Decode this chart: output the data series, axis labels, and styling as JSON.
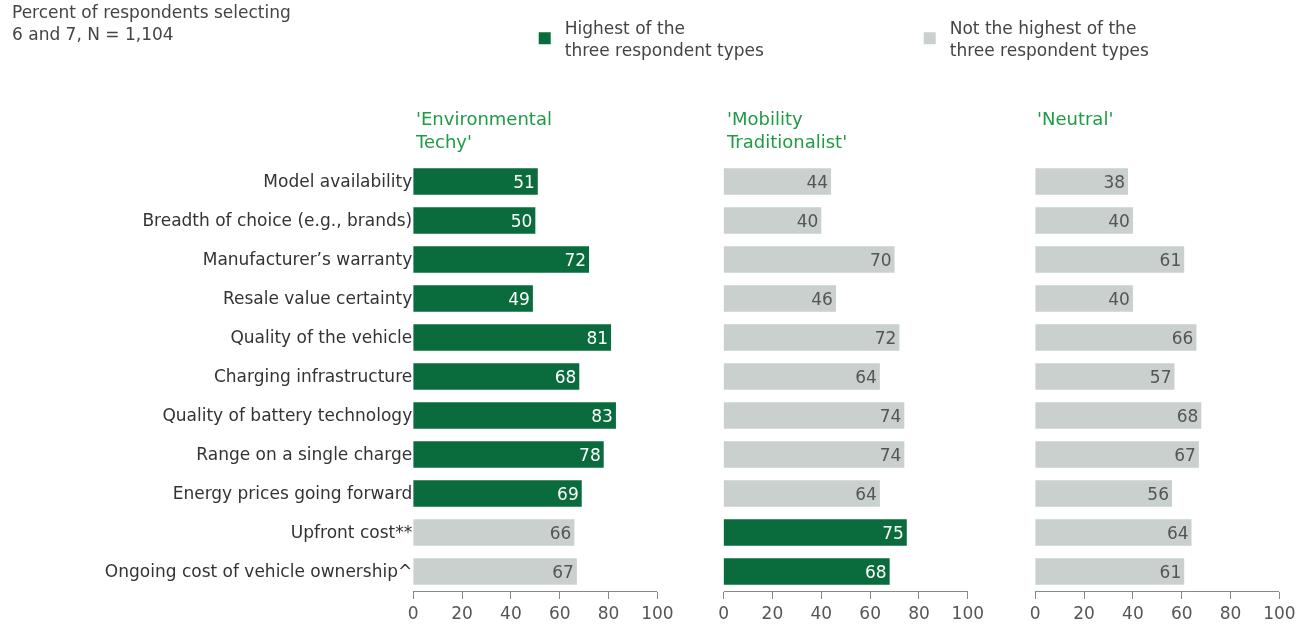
{
  "chart_data": [
    {
      "type": "bar",
      "orientation": "horizontal",
      "title": "'Environmental Techy'",
      "subtitle": "Percent of respondents selecting 6 and 7, N = 1,104",
      "categories": [
        "Model availability",
        "Breadth of choice (e.g., brands)",
        "Manufacturer’s warranty",
        "Resale value certainty",
        "Quality of the vehicle",
        "Charging infrastructure",
        "Quality of battery technology",
        "Range on a single charge",
        "Energy prices going forward",
        "Upfront cost**",
        "Ongoing cost of vehicle ownership^"
      ],
      "series": [
        {
          "name": "Highest of the three respondent types",
          "color": "#0a6b3d",
          "values": [
            51,
            50,
            72,
            49,
            81,
            68,
            83,
            78,
            69,
            null,
            null
          ]
        },
        {
          "name": "Not the highest of the three respondent types",
          "color": "#c9d0cd",
          "values": [
            null,
            null,
            null,
            null,
            null,
            null,
            null,
            null,
            null,
            66,
            67
          ]
        }
      ],
      "xlim": [
        0,
        100
      ],
      "xticks": [
        0,
        20,
        40,
        60,
        80,
        100
      ],
      "data_labels": true,
      "legend": "top right",
      "grid": false
    },
    {
      "type": "bar",
      "orientation": "horizontal",
      "title": "'Mobility Traditionalist'",
      "series": [
        {
          "color": "#0a6b3d",
          "values": [
            null,
            null,
            null,
            null,
            null,
            null,
            null,
            null,
            null,
            75,
            68
          ]
        },
        {
          "color": "#c9d0cd",
          "values": [
            44,
            40,
            70,
            46,
            72,
            64,
            74,
            74,
            64,
            null,
            null
          ]
        }
      ],
      "xlim": [
        0,
        100
      ],
      "xticks": [
        0,
        20,
        40,
        60,
        80,
        100
      ],
      "data_labels": true,
      "tick_labels": "x",
      "grid": false
    },
    {
      "type": "bar",
      "orientation": "horizontal",
      "title": "'Neutral'",
      "series": [
        {
          "color": "#0a6b3d",
          "values": [
            null,
            null,
            null,
            null,
            null,
            null,
            null,
            null,
            null,
            null,
            null
          ]
        },
        {
          "color": "#c9d0cd",
          "values": [
            38,
            40,
            61,
            40,
            66,
            57,
            68,
            67,
            56,
            64,
            61
          ]
        }
      ],
      "xlim": [
        0,
        100
      ],
      "xticks": [
        0,
        20,
        40,
        60,
        80,
        100
      ],
      "data_labels": true,
      "tick_labels": "x",
      "grid": false
    }
  ]
}
